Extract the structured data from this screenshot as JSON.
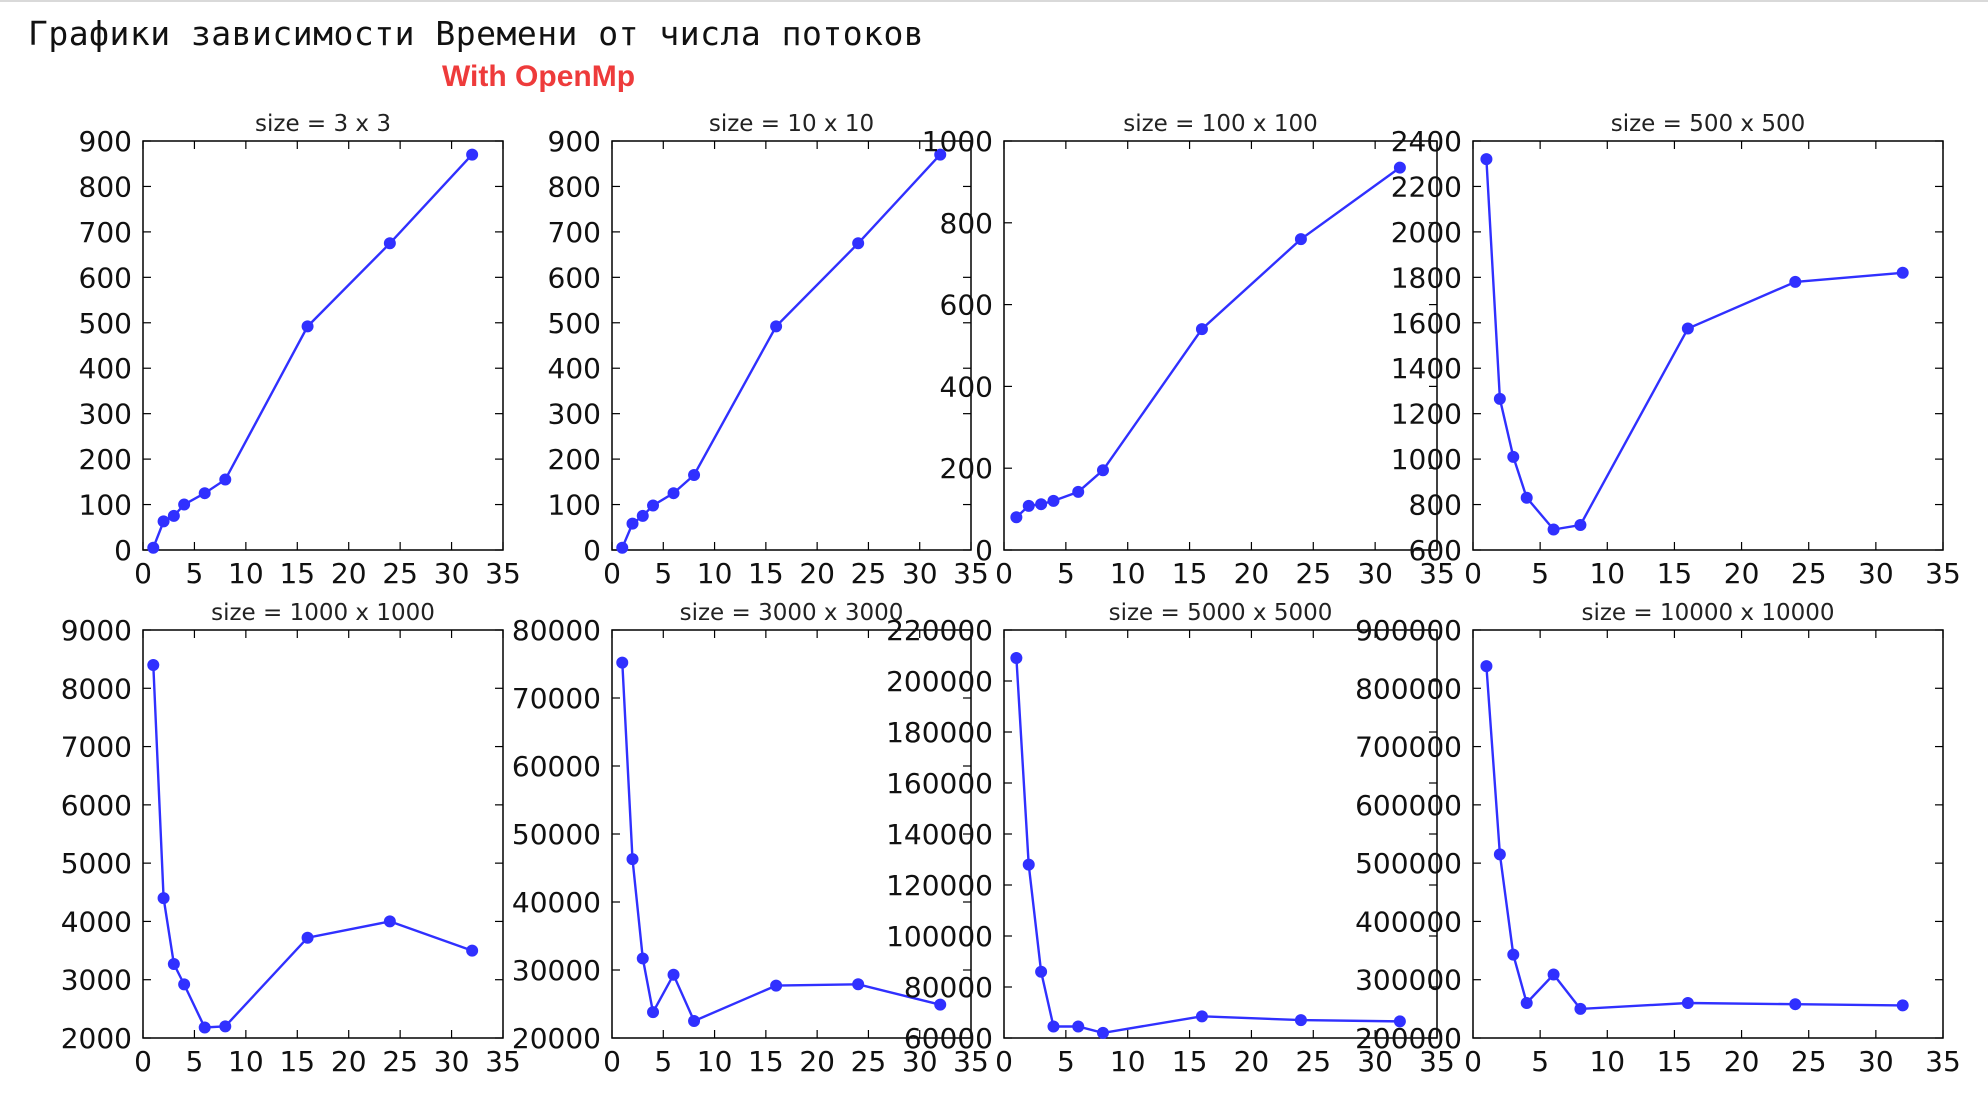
{
  "header": {
    "title": "Графики зависимости Времени от числа потоков",
    "subtitle": "With OpenMp"
  },
  "colors": {
    "line": "#3030ff",
    "subtitle": "#ee3b3b",
    "axes": "#000000"
  },
  "chart_data": [
    {
      "type": "line",
      "title": "size = 3 x 3",
      "x": [
        1,
        2,
        3,
        4,
        6,
        8,
        16,
        24,
        32
      ],
      "y": [
        5,
        63,
        75,
        100,
        125,
        155,
        492,
        675,
        870
      ],
      "xlim": [
        0,
        35
      ],
      "ylim": [
        0,
        900
      ],
      "xticks": [
        0,
        5,
        10,
        15,
        20,
        25,
        30,
        35
      ],
      "yticks": [
        0,
        100,
        200,
        300,
        400,
        500,
        600,
        700,
        800,
        900
      ]
    },
    {
      "type": "line",
      "title": "size = 10 x 10",
      "x": [
        1,
        2,
        3,
        4,
        6,
        8,
        16,
        24,
        32
      ],
      "y": [
        5,
        58,
        75,
        98,
        125,
        165,
        492,
        675,
        870
      ],
      "xlim": [
        0,
        35
      ],
      "ylim": [
        0,
        900
      ],
      "xticks": [
        0,
        5,
        10,
        15,
        20,
        25,
        30,
        35
      ],
      "yticks": [
        0,
        100,
        200,
        300,
        400,
        500,
        600,
        700,
        800,
        900
      ]
    },
    {
      "type": "line",
      "title": "size = 100 x 100",
      "x": [
        1,
        2,
        3,
        4,
        6,
        8,
        16,
        24,
        32
      ],
      "y": [
        80,
        108,
        112,
        120,
        142,
        195,
        540,
        760,
        935
      ],
      "xlim": [
        0,
        35
      ],
      "ylim": [
        0,
        1000
      ],
      "xticks": [
        0,
        5,
        10,
        15,
        20,
        25,
        30,
        35
      ],
      "yticks": [
        0,
        200,
        400,
        600,
        800,
        1000
      ]
    },
    {
      "type": "line",
      "title": "size = 500 x 500",
      "x": [
        1,
        2,
        3,
        4,
        6,
        8,
        16,
        24,
        32
      ],
      "y": [
        2320,
        1265,
        1010,
        830,
        690,
        710,
        1575,
        1780,
        1820
      ],
      "xlim": [
        0,
        35
      ],
      "ylim": [
        600,
        2400
      ],
      "xticks": [
        0,
        5,
        10,
        15,
        20,
        25,
        30,
        35
      ],
      "yticks": [
        600,
        800,
        1000,
        1200,
        1400,
        1600,
        1800,
        2000,
        2200,
        2400
      ]
    },
    {
      "type": "line",
      "title": "size = 1000 x 1000",
      "x": [
        1,
        2,
        3,
        4,
        6,
        8,
        16,
        24,
        32
      ],
      "y": [
        8400,
        4400,
        3270,
        2920,
        2180,
        2200,
        3720,
        4000,
        3500
      ],
      "xlim": [
        0,
        35
      ],
      "ylim": [
        2000,
        9000
      ],
      "xticks": [
        0,
        5,
        10,
        15,
        20,
        25,
        30,
        35
      ],
      "yticks": [
        2000,
        3000,
        4000,
        5000,
        6000,
        7000,
        8000,
        9000
      ]
    },
    {
      "type": "line",
      "title": "size = 3000 x 3000",
      "x": [
        1,
        2,
        3,
        4,
        6,
        8,
        16,
        24,
        32
      ],
      "y": [
        75200,
        46300,
        31700,
        23800,
        29300,
        22500,
        27700,
        27900,
        24900
      ],
      "xlim": [
        0,
        35
      ],
      "ylim": [
        20000,
        80000
      ],
      "xticks": [
        0,
        5,
        10,
        15,
        20,
        25,
        30,
        35
      ],
      "yticks": [
        20000,
        30000,
        40000,
        50000,
        60000,
        70000,
        80000
      ]
    },
    {
      "type": "line",
      "title": "size = 5000 x 5000",
      "x": [
        1,
        2,
        3,
        4,
        6,
        8,
        16,
        24,
        32
      ],
      "y": [
        209000,
        128000,
        86000,
        64500,
        64500,
        62000,
        68500,
        67000,
        66500
      ],
      "xlim": [
        0,
        35
      ],
      "ylim": [
        60000,
        220000
      ],
      "xticks": [
        0,
        5,
        10,
        15,
        20,
        25,
        30,
        35
      ],
      "yticks": [
        60000,
        80000,
        100000,
        120000,
        140000,
        160000,
        180000,
        200000,
        220000
      ]
    },
    {
      "type": "line",
      "title": "size = 10000 x 10000",
      "x": [
        1,
        2,
        3,
        4,
        6,
        8,
        16,
        24,
        32
      ],
      "y": [
        838000,
        515000,
        343000,
        260000,
        309000,
        250000,
        260000,
        258000,
        256000
      ],
      "xlim": [
        0,
        35
      ],
      "ylim": [
        200000,
        900000
      ],
      "xticks": [
        0,
        5,
        10,
        15,
        20,
        25,
        30,
        35
      ],
      "yticks": [
        200000,
        300000,
        400000,
        500000,
        600000,
        700000,
        800000,
        900000
      ]
    }
  ]
}
